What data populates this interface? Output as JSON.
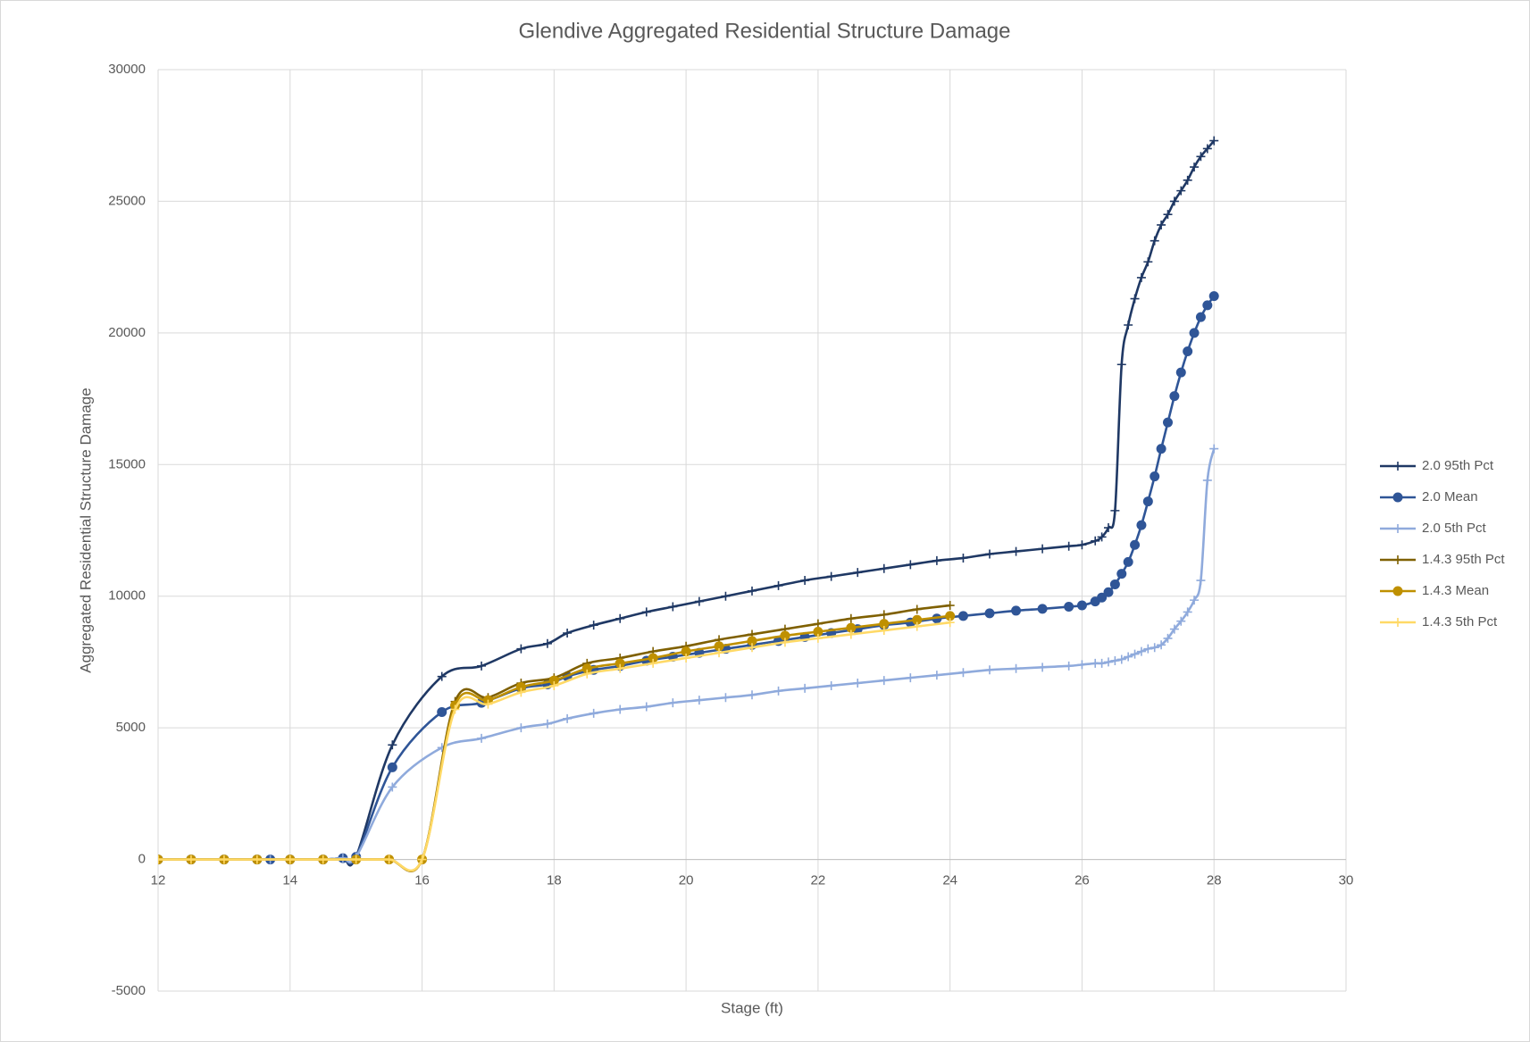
{
  "chart_data": {
    "type": "line",
    "title": "Glendive Aggregated Residential Structure Damage",
    "x_label": "Stage (ft)",
    "y_label": "Aggregated Residential Structure Damage",
    "xlim": [
      12,
      30
    ],
    "xticks": [
      12,
      14,
      16,
      18,
      20,
      22,
      24,
      26,
      28,
      30
    ],
    "ylim": [
      -5000,
      30000
    ],
    "yticks": [
      -5000,
      0,
      5000,
      10000,
      15000,
      20000,
      25000,
      30000
    ],
    "grid": true,
    "smooth": true,
    "legend": "right",
    "series": [
      {
        "name": "2.0 95th Pct",
        "color": "#1f3864",
        "marker": "plus",
        "x": [
          12,
          12.5,
          13,
          13.5,
          13.7,
          14,
          14.5,
          14.8,
          15,
          15.55,
          16.3,
          16.9,
          17.5,
          17.9,
          18.2,
          18.6,
          19,
          19.4,
          19.8,
          20.2,
          20.6,
          21,
          21.4,
          21.8,
          22.2,
          22.6,
          23,
          23.4,
          23.8,
          24.2,
          24.6,
          25,
          25.4,
          25.8,
          26,
          26.2,
          26.3,
          26.4,
          26.5,
          26.6,
          26.7,
          26.8,
          26.9,
          27,
          27.1,
          27.2,
          27.3,
          27.4,
          27.5,
          27.6,
          27.7,
          27.8,
          27.9,
          28
        ],
        "values": [
          0,
          0,
          0,
          0,
          0,
          0,
          0,
          50,
          100,
          4350,
          6950,
          7350,
          8000,
          8200,
          8600,
          8900,
          9150,
          9400,
          9600,
          9800,
          10000,
          10200,
          10400,
          10600,
          10750,
          10900,
          11050,
          11200,
          11350,
          11450,
          11600,
          11700,
          11800,
          11900,
          11950,
          12100,
          12250,
          12600,
          13250,
          18800,
          20300,
          21300,
          22100,
          22700,
          23500,
          24100,
          24500,
          25000,
          25400,
          25800,
          26300,
          26700,
          27000,
          27300
        ]
      },
      {
        "name": "2.0 Mean",
        "color": "#2f5597",
        "marker": "circle",
        "x": [
          12,
          12.5,
          13,
          13.5,
          13.7,
          14,
          14.5,
          14.8,
          15,
          15.55,
          16.3,
          16.9,
          17.5,
          17.9,
          18.2,
          18.6,
          19,
          19.4,
          19.8,
          20.2,
          20.6,
          21,
          21.4,
          21.8,
          22.2,
          22.6,
          23,
          23.4,
          23.8,
          24.2,
          24.6,
          25,
          25.4,
          25.8,
          26,
          26.2,
          26.3,
          26.4,
          26.5,
          26.6,
          26.7,
          26.8,
          26.9,
          27,
          27.1,
          27.2,
          27.3,
          27.4,
          27.5,
          27.6,
          27.7,
          27.8,
          27.9,
          28
        ],
        "values": [
          0,
          0,
          0,
          0,
          0,
          0,
          0,
          50,
          100,
          3500,
          5600,
          5950,
          6500,
          6650,
          6950,
          7200,
          7350,
          7550,
          7700,
          7850,
          8000,
          8150,
          8300,
          8450,
          8600,
          8750,
          8900,
          9000,
          9150,
          9250,
          9350,
          9450,
          9520,
          9600,
          9650,
          9800,
          9950,
          10150,
          10450,
          10850,
          11300,
          11950,
          12700,
          13600,
          14550,
          15600,
          16600,
          17600,
          18500,
          19300,
          20000,
          20600,
          21050,
          21400
        ]
      },
      {
        "name": "2.0 5th Pct",
        "color": "#8faadc",
        "marker": "plus",
        "x": [
          12,
          12.5,
          13,
          13.5,
          13.7,
          14,
          14.5,
          14.8,
          15,
          15.55,
          16.3,
          16.9,
          17.5,
          17.9,
          18.2,
          18.6,
          19,
          19.4,
          19.8,
          20.2,
          20.6,
          21,
          21.4,
          21.8,
          22.2,
          22.6,
          23,
          23.4,
          23.8,
          24.2,
          24.6,
          25,
          25.4,
          25.8,
          26,
          26.2,
          26.3,
          26.4,
          26.5,
          26.6,
          26.7,
          26.8,
          26.9,
          27,
          27.1,
          27.2,
          27.3,
          27.4,
          27.5,
          27.6,
          27.7,
          27.8,
          27.9,
          28
        ],
        "values": [
          0,
          0,
          0,
          0,
          0,
          0,
          0,
          50,
          100,
          2750,
          4250,
          4600,
          5000,
          5150,
          5350,
          5550,
          5700,
          5800,
          5950,
          6050,
          6150,
          6250,
          6400,
          6500,
          6600,
          6700,
          6800,
          6900,
          7000,
          7100,
          7200,
          7250,
          7300,
          7350,
          7400,
          7450,
          7450,
          7500,
          7550,
          7600,
          7700,
          7800,
          7900,
          8000,
          8050,
          8150,
          8400,
          8750,
          9050,
          9400,
          9850,
          10600,
          14400,
          15600
        ]
      },
      {
        "name": "1.4.3 95th Pct",
        "color": "#7f6000",
        "marker": "plus",
        "x": [
          12,
          12.5,
          13,
          13.5,
          14,
          14.5,
          15,
          15.5,
          16,
          16.5,
          17,
          17.5,
          18,
          18.5,
          19,
          19.5,
          20,
          20.5,
          21,
          21.5,
          22,
          22.5,
          23,
          23.5,
          24
        ],
        "values": [
          0,
          0,
          0,
          0,
          0,
          0,
          0,
          0,
          0,
          6000,
          6150,
          6700,
          6900,
          7450,
          7650,
          7900,
          8100,
          8350,
          8550,
          8750,
          8950,
          9150,
          9300,
          9500,
          9650
        ]
      },
      {
        "name": "1.4.3 Mean",
        "color": "#bf9000",
        "marker": "circle",
        "x": [
          12,
          12.5,
          13,
          13.5,
          14,
          14.5,
          15,
          15.5,
          16,
          16.5,
          17,
          17.5,
          18,
          18.5,
          19,
          19.5,
          20,
          20.5,
          21,
          21.5,
          22,
          22.5,
          23,
          23.5,
          24
        ],
        "values": [
          0,
          0,
          0,
          0,
          0,
          0,
          0,
          0,
          0,
          5850,
          6050,
          6550,
          6800,
          7250,
          7450,
          7650,
          7900,
          8100,
          8300,
          8500,
          8650,
          8800,
          8950,
          9100,
          9250
        ]
      },
      {
        "name": "1.4.3 5th Pct",
        "color": "#ffd966",
        "marker": "plus",
        "x": [
          12,
          12.5,
          13,
          13.5,
          14,
          14.5,
          15,
          15.5,
          16,
          16.5,
          17,
          17.5,
          18,
          18.5,
          19,
          19.5,
          20,
          20.5,
          21,
          21.5,
          22,
          22.5,
          23,
          23.5,
          24
        ],
        "values": [
          0,
          0,
          0,
          0,
          0,
          0,
          0,
          0,
          0,
          5700,
          5900,
          6350,
          6600,
          7050,
          7250,
          7450,
          7650,
          7850,
          8050,
          8250,
          8400,
          8550,
          8700,
          8850,
          9000
        ]
      }
    ]
  }
}
